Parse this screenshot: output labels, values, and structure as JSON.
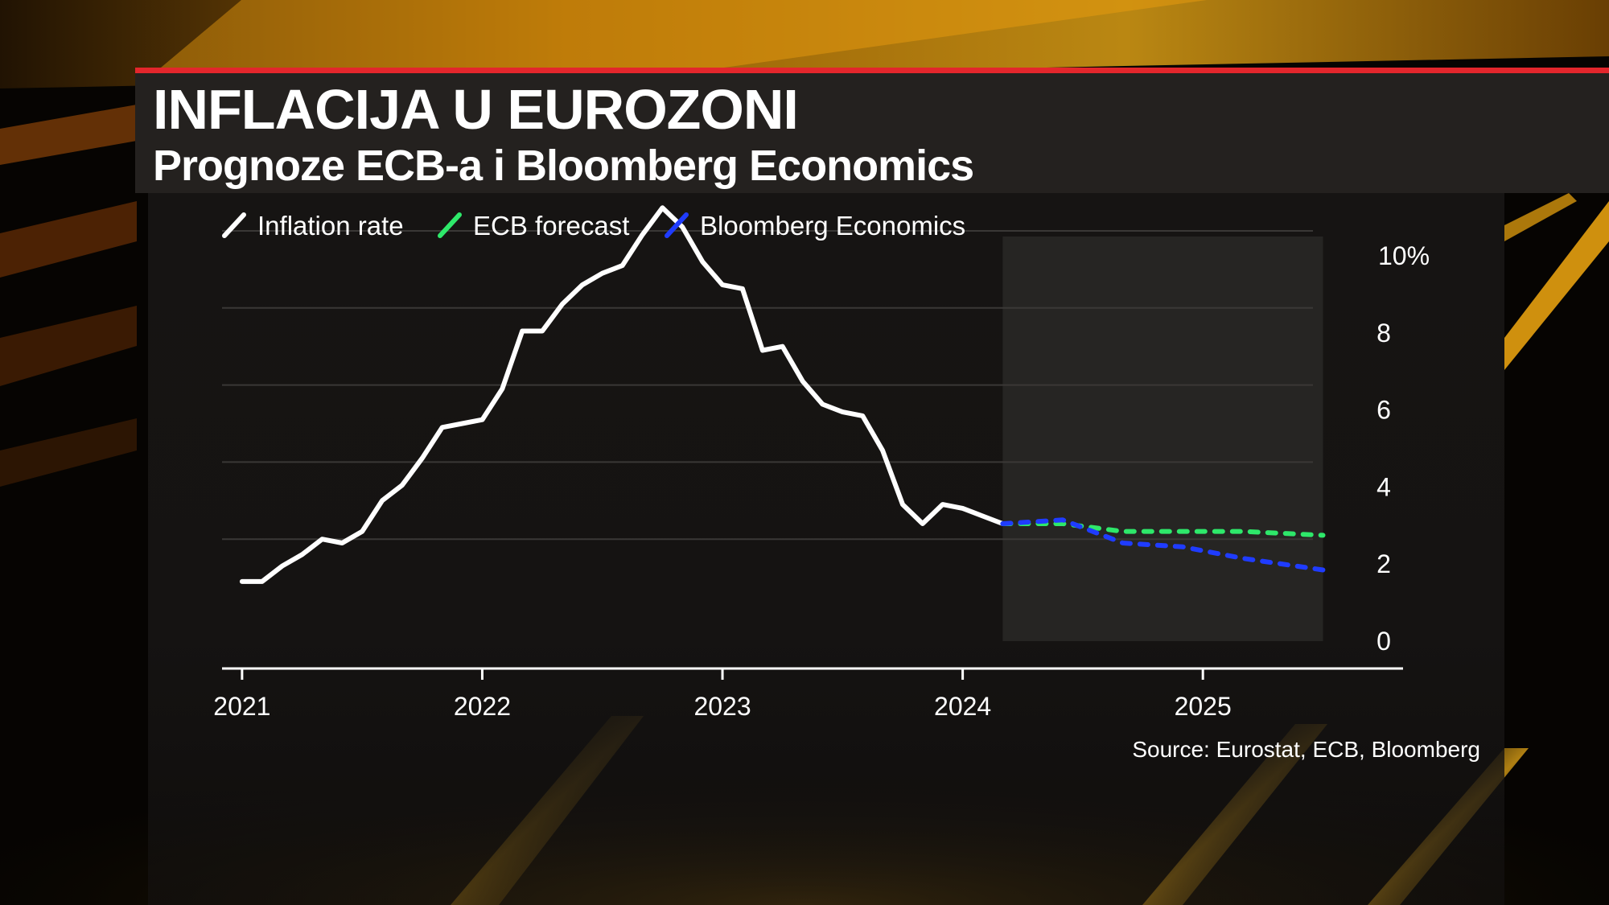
{
  "header": {
    "title": "INFLACIJA U EUROZONI",
    "subtitle": "Prognoze ECB-a i Bloomberg Economics"
  },
  "colors": {
    "accent_red": "#e3262c",
    "inflation_line": "#ffffff",
    "ecb_line": "#2ee86a",
    "bloomberg_line": "#1f3cff",
    "forecast_band": "#262523",
    "background_gold": "#f2a40e"
  },
  "chart_data": {
    "type": "line",
    "legend_position": "top-left",
    "grid": true,
    "ylim": [
      0,
      10
    ],
    "y_ticks": [
      {
        "value": 0,
        "label": "0"
      },
      {
        "value": 2,
        "label": "2"
      },
      {
        "value": 4,
        "label": "4"
      },
      {
        "value": 6,
        "label": "6"
      },
      {
        "value": 8,
        "label": "8"
      },
      {
        "value": 10,
        "label": "10%"
      }
    ],
    "x_ticks": [
      {
        "value": "2021-01",
        "label": "2021"
      },
      {
        "value": "2022-01",
        "label": "2022"
      },
      {
        "value": "2023-01",
        "label": "2023"
      },
      {
        "value": "2024-01",
        "label": "2024"
      },
      {
        "value": "2025-01",
        "label": "2025"
      }
    ],
    "xlim": [
      "2020-12",
      "2025-11"
    ],
    "forecast_band": [
      "2024-03",
      "2025-07"
    ],
    "series": [
      {
        "name": "Inflation rate",
        "points": [
          [
            "2021-01",
            0.9
          ],
          [
            "2021-02",
            0.9
          ],
          [
            "2021-03",
            1.3
          ],
          [
            "2021-04",
            1.6
          ],
          [
            "2021-05",
            2.0
          ],
          [
            "2021-06",
            1.9
          ],
          [
            "2021-07",
            2.2
          ],
          [
            "2021-08",
            3.0
          ],
          [
            "2021-09",
            3.4
          ],
          [
            "2021-10",
            4.1
          ],
          [
            "2021-11",
            4.9
          ],
          [
            "2021-12",
            5.0
          ],
          [
            "2022-01",
            5.1
          ],
          [
            "2022-02",
            5.9
          ],
          [
            "2022-03",
            7.4
          ],
          [
            "2022-04",
            7.4
          ],
          [
            "2022-05",
            8.1
          ],
          [
            "2022-06",
            8.6
          ],
          [
            "2022-07",
            8.9
          ],
          [
            "2022-08",
            9.1
          ],
          [
            "2022-09",
            9.9
          ],
          [
            "2022-10",
            10.6
          ],
          [
            "2022-11",
            10.1
          ],
          [
            "2022-12",
            9.2
          ],
          [
            "2023-01",
            8.6
          ],
          [
            "2023-02",
            8.5
          ],
          [
            "2023-03",
            6.9
          ],
          [
            "2023-04",
            7.0
          ],
          [
            "2023-05",
            6.1
          ],
          [
            "2023-06",
            5.5
          ],
          [
            "2023-07",
            5.3
          ],
          [
            "2023-08",
            5.2
          ],
          [
            "2023-09",
            4.3
          ],
          [
            "2023-10",
            2.9
          ],
          [
            "2023-11",
            2.4
          ],
          [
            "2023-12",
            2.9
          ],
          [
            "2024-01",
            2.8
          ],
          [
            "2024-02",
            2.6
          ],
          [
            "2024-03",
            2.4
          ]
        ]
      },
      {
        "name": "ECB forecast",
        "points": [
          [
            "2024-03",
            2.4
          ],
          [
            "2024-06",
            2.4
          ],
          [
            "2024-09",
            2.2
          ],
          [
            "2024-12",
            2.2
          ],
          [
            "2025-03",
            2.2
          ],
          [
            "2025-07",
            2.1
          ]
        ]
      },
      {
        "name": "Bloomberg Economics",
        "points": [
          [
            "2024-03",
            2.4
          ],
          [
            "2024-06",
            2.5
          ],
          [
            "2024-09",
            1.9
          ],
          [
            "2024-12",
            1.8
          ],
          [
            "2025-03",
            1.5
          ],
          [
            "2025-07",
            1.2
          ]
        ]
      }
    ],
    "source": "Source: Eurostat, ECB, Bloomberg"
  }
}
